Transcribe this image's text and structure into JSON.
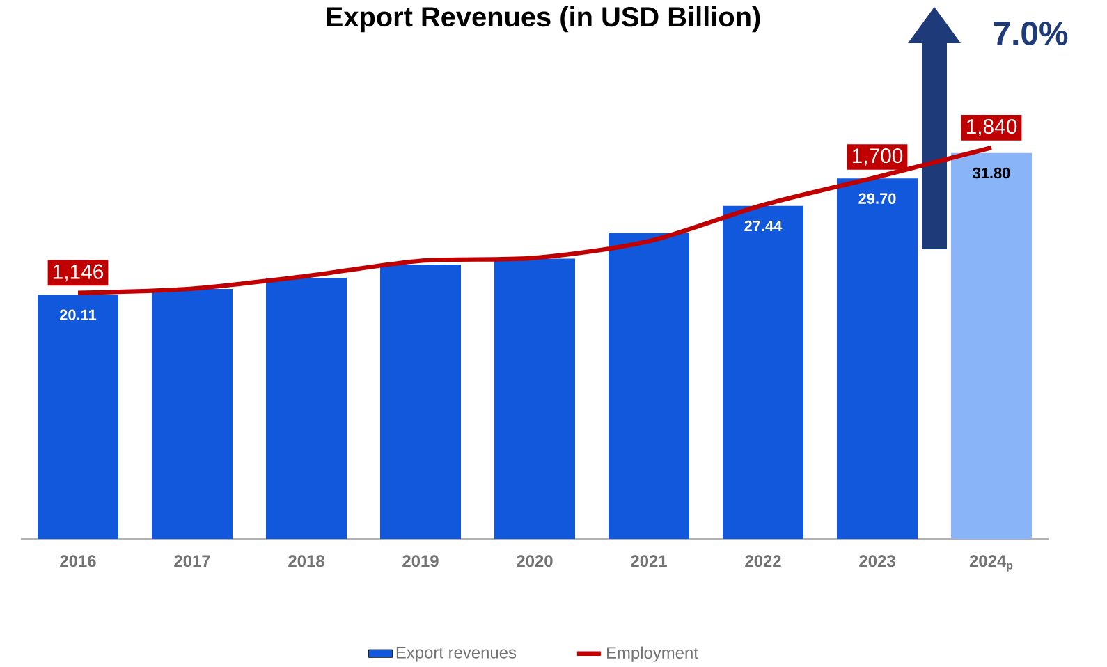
{
  "chart_data": {
    "type": "bar",
    "title": "Export Revenues (in USD Billion)",
    "categories": [
      "2016",
      "2017",
      "2018",
      "2019",
      "2020",
      "2021",
      "2022",
      "2023",
      "2024$_{p}$"
    ],
    "series": [
      {
        "name": "Export revenues",
        "color": "#1158dc",
        "colors": [
          "#1158dc",
          "#1158dc",
          "#1158dc",
          "#1158dc",
          "#1158dc",
          "#1158dc",
          "#1158dc",
          "#1158dc",
          "#8ab4f8"
        ],
        "values": [
          20.11,
          20.6,
          21.5,
          22.6,
          23.1,
          25.2,
          27.44,
          29.7,
          31.8
        ],
        "value_labels": [
          "20.11",
          null,
          null,
          null,
          null,
          null,
          "27.44",
          "29.70",
          "31.80"
        ]
      },
      {
        "name": "Employment",
        "type": "line",
        "axis": "y2",
        "color": "#c00000",
        "values": [
          1146,
          1166,
          1226,
          1299,
          1313,
          1393,
          1566,
          1700,
          1840
        ],
        "value_labels": [
          "1,146",
          null,
          null,
          null,
          null,
          null,
          null,
          "1,700",
          "1,840"
        ]
      }
    ],
    "ylim": [
      0,
      35
    ],
    "y2lim": [
      -30,
      2000
    ],
    "tick_labels": "x",
    "legend": "bottom",
    "annotations": [
      "7.0%"
    ]
  }
}
